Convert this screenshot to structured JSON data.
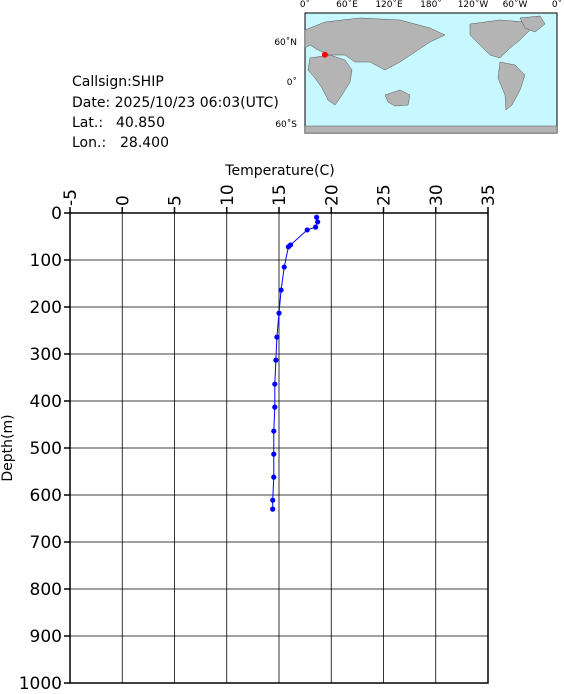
{
  "chart_data": {
    "type": "profile",
    "x_label": "Temperature(C)",
    "y_label": "Depth(m)",
    "x": [
      18.6,
      18.7,
      18.5,
      17.7,
      16.1,
      15.9,
      15.5,
      15.2,
      15.0,
      14.8,
      14.7,
      14.6,
      14.6,
      14.5,
      14.5,
      14.5,
      14.4,
      14.4
    ],
    "values": [
      9,
      19,
      30,
      36,
      68,
      72,
      115,
      164,
      213,
      264,
      313,
      364,
      413,
      464,
      513,
      562,
      611,
      630
    ],
    "color": "#0000ff",
    "xlim": [
      -5,
      35
    ],
    "xticks": [
      -5,
      0,
      5,
      10,
      15,
      20,
      25,
      30,
      35
    ],
    "ylim": [
      0,
      1000
    ],
    "yticks": [
      0,
      100,
      200,
      300,
      400,
      500,
      600,
      700,
      800,
      900,
      1000
    ],
    "y_inverted": true,
    "x_axis_position": "top",
    "grid": true
  },
  "info": {
    "callsign": "Callsign:SHIP",
    "date": "Date:  2025/10/23 06:03(UTC)",
    "lat_label": "Lat.:",
    "lat": "40.850",
    "lon_label": "Lon.:",
    "lon": "28.400"
  },
  "map": {
    "lon_labels": [
      "0˚",
      "60˚E",
      "120˚E",
      "180˚",
      "120˚W",
      "60˚W",
      "0˚"
    ],
    "lat_labels": [
      "60˚N",
      "0˚",
      "60˚S"
    ],
    "marker_color": "#ff0000"
  }
}
